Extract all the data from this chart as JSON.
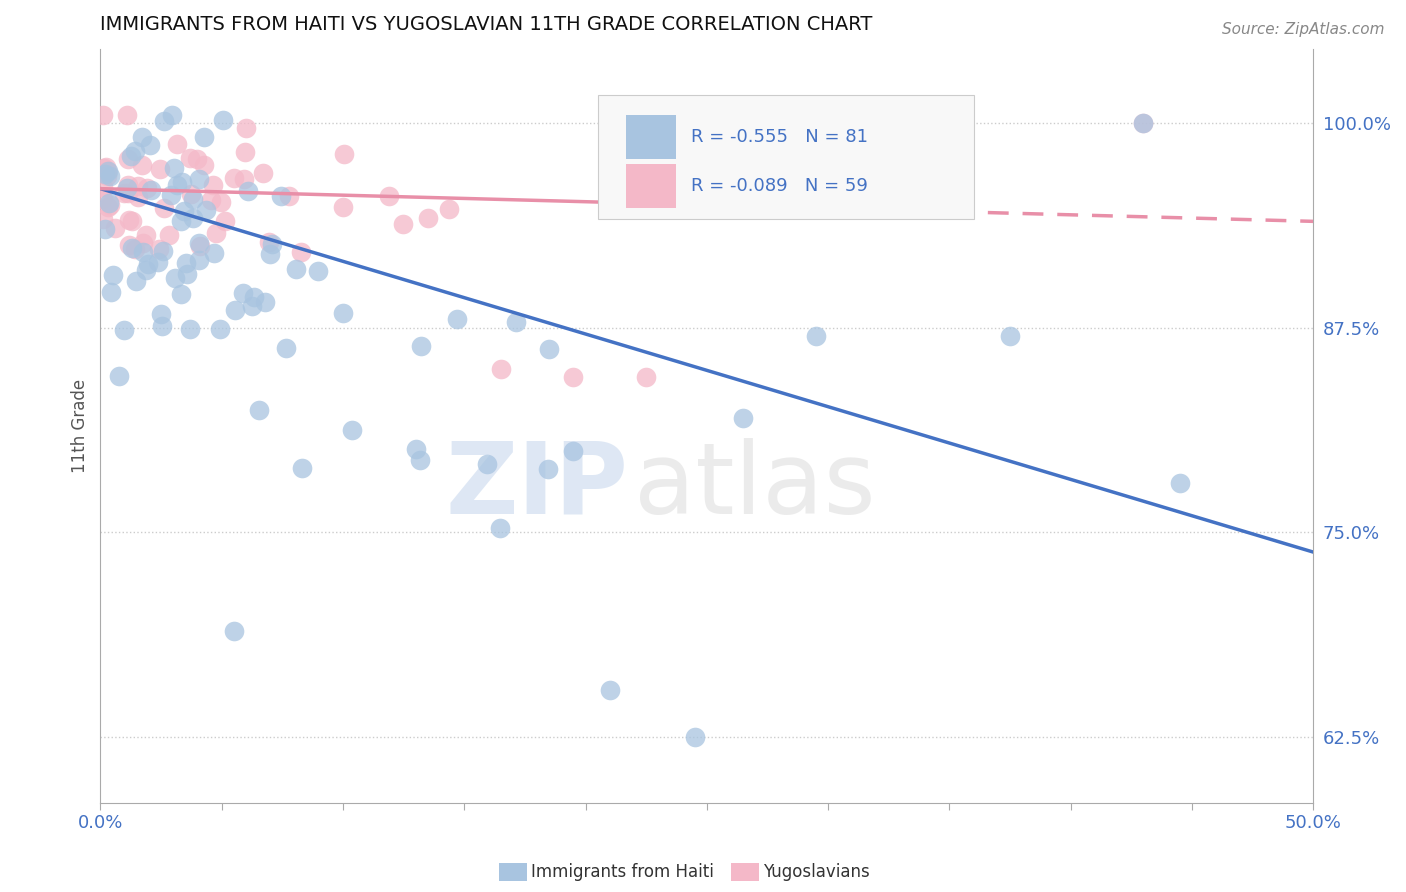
{
  "title": "IMMIGRANTS FROM HAITI VS YUGOSLAVIAN 11TH GRADE CORRELATION CHART",
  "source": "Source: ZipAtlas.com",
  "ylabel": "11th Grade",
  "xlim": [
    0.0,
    0.5
  ],
  "ylim": [
    0.585,
    1.045
  ],
  "xticks": [
    0.0,
    0.05,
    0.1,
    0.15,
    0.2,
    0.25,
    0.3,
    0.35,
    0.4,
    0.45,
    0.5
  ],
  "xticklabels": [
    "0.0%",
    "",
    "",
    "",
    "",
    "",
    "",
    "",
    "",
    "",
    "50.0%"
  ],
  "yticks": [
    0.625,
    0.75,
    0.875,
    1.0
  ],
  "yticklabels": [
    "62.5%",
    "75.0%",
    "87.5%",
    "100.0%"
  ],
  "haiti_color": "#a8c4e0",
  "yugoslavian_color": "#f4b8c8",
  "haiti_line_color": "#4472c4",
  "yugoslavian_line_color": "#e88fa8",
  "R_haiti": -0.555,
  "N_haiti": 81,
  "R_yugoslavian": -0.089,
  "N_yugoslavian": 59,
  "legend_label_haiti": "Immigrants from Haiti",
  "legend_label_yugoslavian": "Yugoslavians",
  "haiti_trend": [
    0.96,
    0.738
  ],
  "yugo_trend": [
    0.96,
    0.94
  ]
}
